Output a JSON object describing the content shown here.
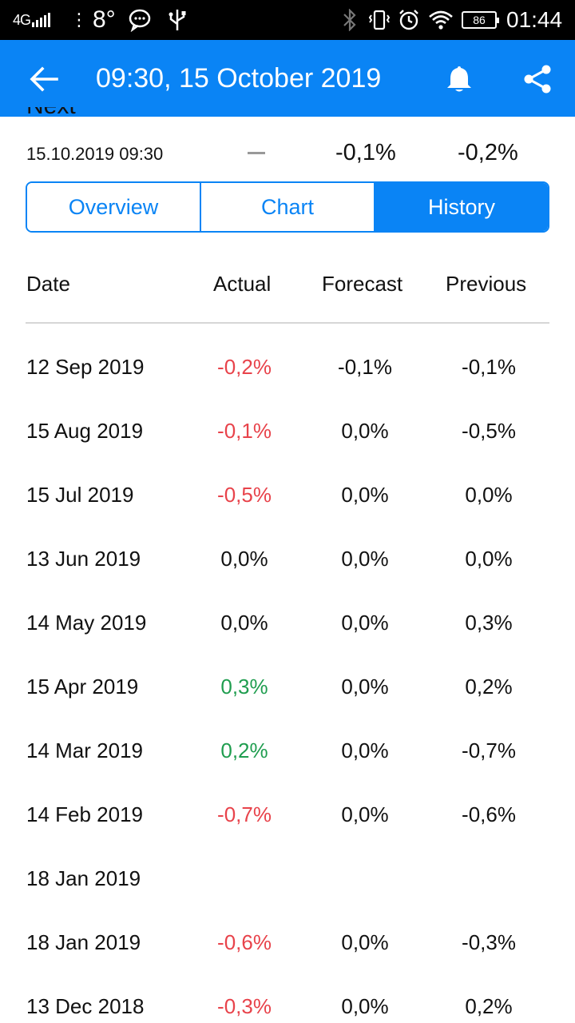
{
  "status_bar": {
    "network": "4G",
    "temperature": "8°",
    "battery": "86",
    "time": "01:44"
  },
  "app_bar": {
    "title": "09:30, 15 October 2019"
  },
  "next": {
    "label": "Next",
    "date": "15.10.2019 09:30",
    "forecast": "-0,1%",
    "previous": "-0,2%"
  },
  "tabs": [
    {
      "label": "Overview",
      "active": false
    },
    {
      "label": "Chart",
      "active": false
    },
    {
      "label": "History",
      "active": true
    }
  ],
  "table": {
    "headers": {
      "date": "Date",
      "actual": "Actual",
      "forecast": "Forecast",
      "previous": "Previous"
    },
    "rows": [
      {
        "date": "12 Sep 2019",
        "actual": "-0,2%",
        "actual_trend": "neg",
        "forecast": "-0,1%",
        "previous": "-0,1%"
      },
      {
        "date": "15 Aug 2019",
        "actual": "-0,1%",
        "actual_trend": "neg",
        "forecast": "0,0%",
        "previous": "-0,5%"
      },
      {
        "date": "15 Jul 2019",
        "actual": "-0,5%",
        "actual_trend": "neg",
        "forecast": "0,0%",
        "previous": "0,0%"
      },
      {
        "date": "13 Jun 2019",
        "actual": "0,0%",
        "actual_trend": "neutral",
        "forecast": "0,0%",
        "previous": "0,0%"
      },
      {
        "date": "14 May 2019",
        "actual": "0,0%",
        "actual_trend": "neutral",
        "forecast": "0,0%",
        "previous": "0,3%"
      },
      {
        "date": "15 Apr 2019",
        "actual": "0,3%",
        "actual_trend": "pos",
        "forecast": "0,0%",
        "previous": "0,2%"
      },
      {
        "date": "14 Mar 2019",
        "actual": "0,2%",
        "actual_trend": "pos",
        "forecast": "0,0%",
        "previous": "-0,7%"
      },
      {
        "date": "14 Feb 2019",
        "actual": "-0,7%",
        "actual_trend": "neg",
        "forecast": "0,0%",
        "previous": "-0,6%"
      },
      {
        "date": "18 Jan 2019",
        "actual": "",
        "actual_trend": "neutral",
        "forecast": "",
        "previous": ""
      },
      {
        "date": "18 Jan 2019",
        "actual": "-0,6%",
        "actual_trend": "neg",
        "forecast": "0,0%",
        "previous": "-0,3%"
      },
      {
        "date": "13 Dec 2018",
        "actual": "-0,3%",
        "actual_trend": "neg",
        "forecast": "0,0%",
        "previous": "0,2%"
      }
    ]
  },
  "colors": {
    "accent": "#0a84f5",
    "negative": "#e8434b",
    "positive": "#1f9d4f"
  }
}
